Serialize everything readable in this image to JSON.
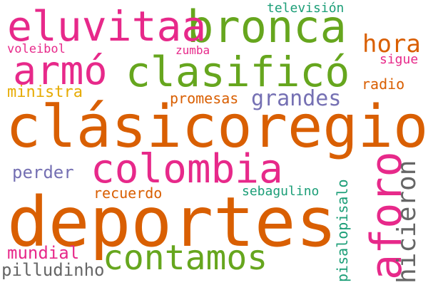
{
  "words": [
    {
      "text": "deportes",
      "color": "#d95f02"
    },
    {
      "text": "clásicoregio",
      "color": "#d95f02"
    },
    {
      "text": "colombia",
      "color": "#e7298a"
    },
    {
      "text": "bronca",
      "color": "#66a61e"
    },
    {
      "text": "clasificó",
      "color": "#66a61e"
    },
    {
      "text": "contamos",
      "color": "#66a61e"
    },
    {
      "text": "eluvitaa",
      "color": "#e7298a"
    },
    {
      "text": "armó",
      "color": "#e7298a"
    },
    {
      "text": "aforo",
      "color": "#e7298a"
    },
    {
      "text": "hicieron",
      "color": "#666666"
    },
    {
      "text": "grandes",
      "color": "#7570b3"
    },
    {
      "text": "hora",
      "color": "#d95f02"
    },
    {
      "text": "televisión",
      "color": "#1b9e77"
    },
    {
      "text": "voleibol",
      "color": "#e7298a"
    },
    {
      "text": "zumba",
      "color": "#e7298a"
    },
    {
      "text": "sigue",
      "color": "#e7298a"
    },
    {
      "text": "ministra",
      "color": "#e6ab02"
    },
    {
      "text": "radio",
      "color": "#d95f02"
    },
    {
      "text": "promesas",
      "color": "#d95f02"
    },
    {
      "text": "perder",
      "color": "#7570b3"
    },
    {
      "text": "recuerdo",
      "color": "#d95f02"
    },
    {
      "text": "sebagulino",
      "color": "#1b9e77"
    },
    {
      "text": "pisalopisalo",
      "color": "#1b9e77"
    },
    {
      "text": "mundial",
      "color": "#e7298a"
    },
    {
      "text": "pilludinho",
      "color": "#666666"
    }
  ]
}
